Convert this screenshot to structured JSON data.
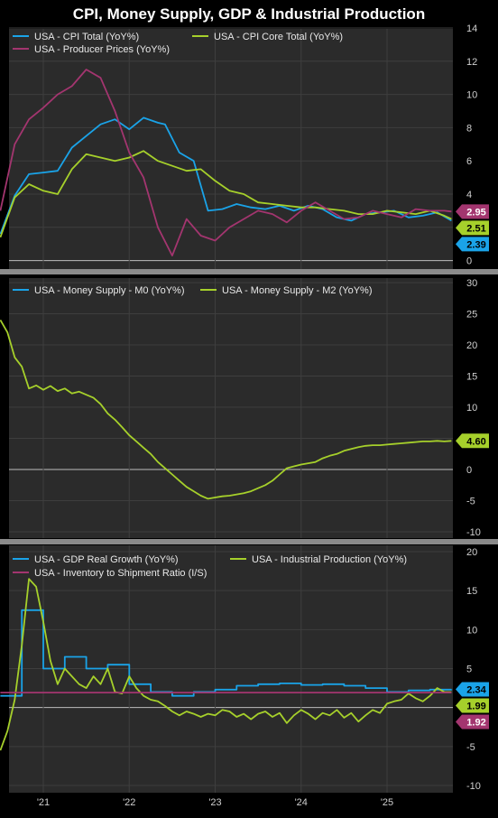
{
  "title": "CPI, Money Supply, GDP & Industrial Production",
  "colors": {
    "background": "#2b2b2b",
    "grid": "#3e3e3e",
    "zero_line": "#bdbdbd",
    "cpi_total": "#1aa3e8",
    "cpi_core": "#a6d02b",
    "ppi": "#a3356f",
    "m0": "#1aa3e8",
    "m2": "#a6d02b",
    "gdp": "#1aa3e8",
    "ip": "#a6d02b",
    "is_ratio": "#a3356f"
  },
  "chart_data": [
    {
      "type": "line",
      "name": "inflation",
      "x_range": [
        "2020-07-01",
        "2025-10-01"
      ],
      "ylim": [
        -1,
        14
      ],
      "y_ticks": [
        0,
        2,
        4,
        6,
        8,
        10,
        12,
        14
      ],
      "legend": "top-left",
      "grid": true,
      "series": [
        {
          "name": "USA - CPI Total (YoY%)",
          "color_key": "cpi_total",
          "last_value_label": "2.39",
          "x": [
            "2020-07",
            "2020-09",
            "2020-11",
            "2021-01",
            "2021-03",
            "2021-05",
            "2021-07",
            "2021-09",
            "2021-11",
            "2022-01",
            "2022-03",
            "2022-05",
            "2022-06",
            "2022-08",
            "2022-10",
            "2022-12",
            "2023-02",
            "2023-04",
            "2023-06",
            "2023-08",
            "2023-10",
            "2023-12",
            "2024-02",
            "2024-04",
            "2024-06",
            "2024-08",
            "2024-10",
            "2024-12",
            "2025-02",
            "2025-04",
            "2025-06",
            "2025-08",
            "2025-10"
          ],
          "y": [
            1.6,
            3.9,
            5.2,
            5.3,
            5.4,
            6.8,
            7.5,
            8.2,
            8.5,
            7.9,
            8.6,
            8.3,
            8.2,
            6.5,
            6.0,
            3.0,
            3.1,
            3.4,
            3.2,
            3.1,
            3.3,
            3.0,
            3.3,
            3.1,
            2.6,
            2.4,
            2.8,
            2.9,
            3.0,
            2.6,
            2.7,
            2.9,
            2.4
          ]
        },
        {
          "name": "USA - CPI Core Total (YoY%)",
          "color_key": "cpi_core",
          "last_value_label": "2.51",
          "x": [
            "2020-07",
            "2020-09",
            "2020-11",
            "2021-01",
            "2021-03",
            "2021-05",
            "2021-07",
            "2021-09",
            "2021-11",
            "2022-01",
            "2022-03",
            "2022-05",
            "2022-07",
            "2022-09",
            "2022-11",
            "2023-01",
            "2023-03",
            "2023-05",
            "2023-07",
            "2023-09",
            "2023-11",
            "2024-01",
            "2024-03",
            "2024-05",
            "2024-07",
            "2024-09",
            "2024-11",
            "2025-01",
            "2025-03",
            "2025-05",
            "2025-07",
            "2025-09",
            "2025-10"
          ],
          "y": [
            1.4,
            3.8,
            4.6,
            4.2,
            4.0,
            5.5,
            6.4,
            6.2,
            6.0,
            6.2,
            6.6,
            6.0,
            5.7,
            5.4,
            5.5,
            4.8,
            4.2,
            4.0,
            3.5,
            3.4,
            3.3,
            3.2,
            3.2,
            3.1,
            3.0,
            2.8,
            2.8,
            3.0,
            2.9,
            2.8,
            3.0,
            2.7,
            2.5
          ]
        },
        {
          "name": "USA - Producer Prices (YoY%)",
          "color_key": "ppi",
          "last_value_label": "2.95",
          "x": [
            "2020-07",
            "2020-09",
            "2020-11",
            "2021-01",
            "2021-03",
            "2021-05",
            "2021-07",
            "2021-09",
            "2021-11",
            "2022-01",
            "2022-03",
            "2022-05",
            "2022-07",
            "2022-09",
            "2022-11",
            "2023-01",
            "2023-03",
            "2023-05",
            "2023-07",
            "2023-09",
            "2023-11",
            "2024-01",
            "2024-03",
            "2024-05",
            "2024-07",
            "2024-09",
            "2024-11",
            "2025-01",
            "2025-03",
            "2025-05",
            "2025-07",
            "2025-09",
            "2025-10"
          ],
          "y": [
            3.0,
            7.0,
            8.5,
            9.2,
            10.0,
            10.5,
            11.5,
            11.0,
            9.0,
            6.5,
            5.0,
            2.0,
            0.3,
            2.5,
            1.5,
            1.2,
            2.0,
            2.5,
            3.0,
            2.8,
            2.3,
            3.0,
            3.5,
            3.0,
            2.5,
            2.6,
            3.0,
            2.8,
            2.6,
            3.1,
            3.0,
            3.0,
            2.95
          ]
        }
      ]
    },
    {
      "type": "line",
      "name": "money-supply",
      "x_range": [
        "2020-07-01",
        "2025-10-01"
      ],
      "ylim": [
        -10,
        30
      ],
      "y_ticks": [
        -10,
        -5,
        0,
        5,
        10,
        15,
        20,
        25,
        30
      ],
      "legend": "top-left",
      "grid": true,
      "series": [
        {
          "name": "USA - Money Supply - M0 (YoY%)",
          "color_key": "m0",
          "x": [],
          "y": []
        },
        {
          "name": "USA - Money Supply - M2 (YoY%)",
          "color_key": "m2",
          "last_value_label": "4.60",
          "x": [
            "2020-07",
            "2020-08",
            "2020-09",
            "2020-10",
            "2020-11",
            "2020-12",
            "2021-01",
            "2021-02",
            "2021-03",
            "2021-04",
            "2021-05",
            "2021-06",
            "2021-07",
            "2021-08",
            "2021-09",
            "2021-10",
            "2021-11",
            "2021-12",
            "2022-01",
            "2022-02",
            "2022-03",
            "2022-04",
            "2022-05",
            "2022-06",
            "2022-07",
            "2022-08",
            "2022-09",
            "2022-10",
            "2022-11",
            "2022-12",
            "2023-01",
            "2023-02",
            "2023-03",
            "2023-04",
            "2023-05",
            "2023-06",
            "2023-07",
            "2023-08",
            "2023-09",
            "2023-10",
            "2023-11",
            "2023-12",
            "2024-01",
            "2024-02",
            "2024-03",
            "2024-04",
            "2024-05",
            "2024-06",
            "2024-07",
            "2024-08",
            "2024-09",
            "2024-10",
            "2024-11",
            "2024-12",
            "2025-01",
            "2025-02",
            "2025-03",
            "2025-04",
            "2025-05",
            "2025-06",
            "2025-07",
            "2025-08",
            "2025-09",
            "2025-10"
          ],
          "y": [
            24,
            22,
            18,
            16.5,
            13,
            13.5,
            12.8,
            13.4,
            12.6,
            13.0,
            12.2,
            12.5,
            12.0,
            11.5,
            10.5,
            9.0,
            8.0,
            6.8,
            5.5,
            4.5,
            3.5,
            2.5,
            1.2,
            0.2,
            -0.8,
            -1.8,
            -2.8,
            -3.5,
            -4.2,
            -4.7,
            -4.5,
            -4.3,
            -4.2,
            -4.0,
            -3.8,
            -3.5,
            -3.0,
            -2.5,
            -1.8,
            -0.8,
            0.2,
            0.5,
            0.8,
            1.0,
            1.2,
            1.8,
            2.2,
            2.5,
            3.0,
            3.3,
            3.6,
            3.8,
            3.9,
            3.9,
            4.0,
            4.1,
            4.2,
            4.3,
            4.4,
            4.5,
            4.5,
            4.6,
            4.5,
            4.6
          ]
        }
      ]
    },
    {
      "type": "line",
      "name": "growth",
      "x_range": [
        "2020-07-01",
        "2025-10-01"
      ],
      "ylim": [
        -10,
        20
      ],
      "y_ticks": [
        -10,
        -5,
        0,
        5,
        10,
        15,
        20
      ],
      "x_tick_labels": [
        "'21",
        "'22",
        "'23",
        "'24",
        "'25"
      ],
      "legend": "top-left",
      "grid": true,
      "series": [
        {
          "name": "USA - GDP Real Growth (YoY%)",
          "color_key": "gdp",
          "last_value_label": "2.34",
          "step": true,
          "x": [
            "2020-07",
            "2020-10",
            "2021-01",
            "2021-04",
            "2021-07",
            "2021-10",
            "2022-01",
            "2022-04",
            "2022-07",
            "2022-10",
            "2023-01",
            "2023-04",
            "2023-07",
            "2023-10",
            "2024-01",
            "2024-04",
            "2024-07",
            "2024-10",
            "2025-01",
            "2025-04",
            "2025-07",
            "2025-10"
          ],
          "y": [
            1.5,
            12.5,
            5.0,
            6.5,
            5.0,
            5.5,
            3.0,
            2.0,
            1.5,
            2.0,
            2.3,
            2.8,
            3.0,
            3.1,
            2.9,
            3.0,
            2.8,
            2.5,
            2.0,
            2.2,
            2.3,
            2.34
          ]
        },
        {
          "name": "USA - Industrial Production (YoY%)",
          "color_key": "ip",
          "last_value_label": "1.99",
          "x": [
            "2020-07",
            "2020-08",
            "2020-09",
            "2020-10",
            "2020-11",
            "2020-12",
            "2021-01",
            "2021-02",
            "2021-03",
            "2021-04",
            "2021-05",
            "2021-06",
            "2021-07",
            "2021-08",
            "2021-09",
            "2021-10",
            "2021-11",
            "2021-12",
            "2022-01",
            "2022-02",
            "2022-03",
            "2022-04",
            "2022-05",
            "2022-06",
            "2022-07",
            "2022-08",
            "2022-09",
            "2022-10",
            "2022-11",
            "2022-12",
            "2023-01",
            "2023-02",
            "2023-03",
            "2023-04",
            "2023-05",
            "2023-06",
            "2023-07",
            "2023-08",
            "2023-09",
            "2023-10",
            "2023-11",
            "2023-12",
            "2024-01",
            "2024-02",
            "2024-03",
            "2024-04",
            "2024-05",
            "2024-06",
            "2024-07",
            "2024-08",
            "2024-09",
            "2024-10",
            "2024-11",
            "2024-12",
            "2025-01",
            "2025-02",
            "2025-03",
            "2025-04",
            "2025-05",
            "2025-06",
            "2025-07",
            "2025-08",
            "2025-09",
            "2025-10"
          ],
          "y": [
            -5.5,
            -3,
            1,
            8,
            16.5,
            15.5,
            11,
            6,
            3,
            5,
            4,
            3,
            2.5,
            4,
            3,
            5,
            2,
            1.8,
            4,
            2.5,
            1.5,
            1,
            0.8,
            0.2,
            -0.5,
            -1,
            -0.5,
            -0.8,
            -1.2,
            -0.8,
            -1.0,
            -0.3,
            -0.5,
            -1.2,
            -0.8,
            -1.5,
            -0.8,
            -0.5,
            -1.2,
            -0.7,
            -2.0,
            -1.0,
            -0.3,
            -0.8,
            -1.5,
            -0.7,
            -1.0,
            -0.3,
            -1.3,
            -0.7,
            -1.8,
            -1.0,
            -0.3,
            -0.7,
            0.5,
            0.8,
            1.0,
            1.8,
            1.2,
            0.8,
            1.5,
            2.5,
            2.0,
            1.99
          ]
        },
        {
          "name": "USA - Inventory to Shipment Ratio (I/S)",
          "color_key": "is_ratio",
          "last_value_label": "1.92",
          "x": [
            "2020-07",
            "2025-10"
          ],
          "y": [
            1.92,
            1.92
          ]
        }
      ]
    }
  ]
}
